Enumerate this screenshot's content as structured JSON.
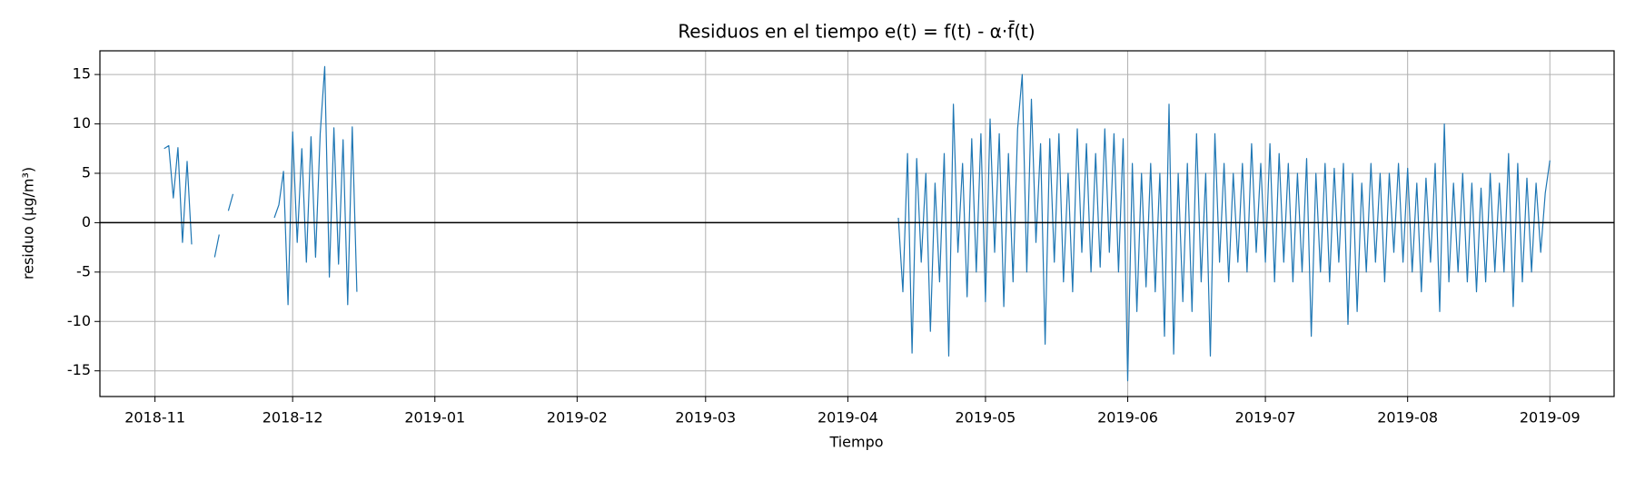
{
  "chart_data": {
    "type": "line",
    "title": "Residuos en el tiempo  e(t) = f(t) - α·f̄(t)",
    "x_label": "Tiempo",
    "y_label": "residuo (µg/m³)",
    "xlim": [
      "2018-10-20",
      "2019-09-15"
    ],
    "ylim": [
      -17.6,
      17.4
    ],
    "xticks": [
      {
        "value": "2018-11-01",
        "label": "2018-11"
      },
      {
        "value": "2018-12-01",
        "label": "2018-12"
      },
      {
        "value": "2019-01-01",
        "label": "2019-01"
      },
      {
        "value": "2019-02-01",
        "label": "2019-02"
      },
      {
        "value": "2019-03-01",
        "label": "2019-03"
      },
      {
        "value": "2019-04-01",
        "label": "2019-04"
      },
      {
        "value": "2019-05-01",
        "label": "2019-05"
      },
      {
        "value": "2019-06-01",
        "label": "2019-06"
      },
      {
        "value": "2019-07-01",
        "label": "2019-07"
      },
      {
        "value": "2019-08-01",
        "label": "2019-08"
      },
      {
        "value": "2019-09-01",
        "label": "2019-09"
      }
    ],
    "yticks": [
      -15,
      -10,
      -5,
      0,
      5,
      10,
      15
    ],
    "grid": true,
    "hline": 0,
    "x": [
      "2018-11-03",
      "2018-11-04",
      "2018-11-05",
      "2018-11-06",
      "2018-11-07",
      "2018-11-08",
      "2018-11-09",
      "2018-11-10",
      "2018-11-14",
      "2018-11-15",
      "2018-11-16",
      "2018-11-17",
      "2018-11-18",
      "2018-11-19",
      "2018-11-27",
      "2018-11-28",
      "2018-11-29",
      "2018-11-30",
      "2018-12-01",
      "2018-12-02",
      "2018-12-03",
      "2018-12-04",
      "2018-12-05",
      "2018-12-06",
      "2018-12-07",
      "2018-12-08",
      "2018-12-09",
      "2018-12-10",
      "2018-12-11",
      "2018-12-12",
      "2018-12-13",
      "2018-12-14",
      "2018-12-15",
      "2018-12-16",
      "2019-04-12",
      "2019-04-13",
      "2019-04-14",
      "2019-04-15",
      "2019-04-16",
      "2019-04-17",
      "2019-04-18",
      "2019-04-19",
      "2019-04-20",
      "2019-04-21",
      "2019-04-22",
      "2019-04-23",
      "2019-04-24",
      "2019-04-25",
      "2019-04-26",
      "2019-04-27",
      "2019-04-28",
      "2019-04-29",
      "2019-04-30",
      "2019-05-01",
      "2019-05-02",
      "2019-05-03",
      "2019-05-04",
      "2019-05-05",
      "2019-05-06",
      "2019-05-07",
      "2019-05-08",
      "2019-05-09",
      "2019-05-10",
      "2019-05-11",
      "2019-05-12",
      "2019-05-13",
      "2019-05-14",
      "2019-05-15",
      "2019-05-16",
      "2019-05-17",
      "2019-05-18",
      "2019-05-19",
      "2019-05-20",
      "2019-05-21",
      "2019-05-22",
      "2019-05-23",
      "2019-05-24",
      "2019-05-25",
      "2019-05-26",
      "2019-05-27",
      "2019-05-28",
      "2019-05-29",
      "2019-05-30",
      "2019-05-31",
      "2019-06-01",
      "2019-06-02",
      "2019-06-03",
      "2019-06-04",
      "2019-06-05",
      "2019-06-06",
      "2019-06-07",
      "2019-06-08",
      "2019-06-09",
      "2019-06-10",
      "2019-06-11",
      "2019-06-12",
      "2019-06-13",
      "2019-06-14",
      "2019-06-15",
      "2019-06-16",
      "2019-06-17",
      "2019-06-18",
      "2019-06-19",
      "2019-06-20",
      "2019-06-21",
      "2019-06-22",
      "2019-06-23",
      "2019-06-24",
      "2019-06-25",
      "2019-06-26",
      "2019-06-27",
      "2019-06-28",
      "2019-06-29",
      "2019-06-30",
      "2019-07-01",
      "2019-07-02",
      "2019-07-03",
      "2019-07-04",
      "2019-07-05",
      "2019-07-06",
      "2019-07-07",
      "2019-07-08",
      "2019-07-09",
      "2019-07-10",
      "2019-07-11",
      "2019-07-12",
      "2019-07-13",
      "2019-07-14",
      "2019-07-15",
      "2019-07-16",
      "2019-07-17",
      "2019-07-18",
      "2019-07-19",
      "2019-07-20",
      "2019-07-21",
      "2019-07-22",
      "2019-07-23",
      "2019-07-24",
      "2019-07-25",
      "2019-07-26",
      "2019-07-27",
      "2019-07-28",
      "2019-07-29",
      "2019-07-30",
      "2019-07-31",
      "2019-08-01",
      "2019-08-02",
      "2019-08-03",
      "2019-08-04",
      "2019-08-05",
      "2019-08-06",
      "2019-08-07",
      "2019-08-08",
      "2019-08-09",
      "2019-08-10",
      "2019-08-11",
      "2019-08-12",
      "2019-08-13",
      "2019-08-14",
      "2019-08-15",
      "2019-08-16",
      "2019-08-17",
      "2019-08-18",
      "2019-08-19",
      "2019-08-20",
      "2019-08-21",
      "2019-08-22",
      "2019-08-23",
      "2019-08-24",
      "2019-08-25",
      "2019-08-26",
      "2019-08-27",
      "2019-08-28",
      "2019-08-29",
      "2019-08-30",
      "2019-08-31",
      "2019-09-01"
    ],
    "series": [
      {
        "name": "residuo",
        "color": "#1f77b4",
        "values": [
          7.5,
          7.8,
          2.5,
          7.6,
          -2.0,
          6.2,
          -2.2,
          null,
          -3.5,
          -1.2,
          null,
          1.2,
          2.9,
          null,
          0.5,
          1.8,
          5.2,
          -8.3,
          9.2,
          -2.0,
          7.5,
          -4.0,
          8.7,
          -3.5,
          9.0,
          15.8,
          -5.5,
          9.6,
          -4.2,
          8.4,
          -8.3,
          9.7,
          -7.0,
          null,
          0.5,
          -7,
          7,
          -13.2,
          6.5,
          -4,
          5,
          -11,
          4,
          -6,
          7,
          -13.5,
          12,
          -3,
          6,
          -7.5,
          8.5,
          -5,
          9,
          -8,
          10.5,
          -3,
          9,
          -8.5,
          7,
          -6,
          9.5,
          15,
          -5,
          12.5,
          -2,
          8,
          -12.3,
          8.5,
          -4,
          9,
          -6,
          5,
          -7,
          9.5,
          -3,
          8,
          -5,
          7,
          -4.5,
          9.5,
          -3,
          9,
          -5,
          8.5,
          -16,
          6,
          -9,
          5,
          -6.5,
          6,
          -7,
          5,
          -11.5,
          12,
          -13.3,
          5,
          -8,
          6,
          -9,
          9,
          -6,
          5,
          -13.5,
          9,
          -4,
          6,
          -6,
          5,
          -4,
          6,
          -5,
          8,
          -3,
          6,
          -4,
          8,
          -6,
          7,
          -4,
          6,
          -6,
          5,
          -5,
          6.5,
          -11.5,
          5,
          -5,
          6,
          -6,
          5.5,
          -4,
          6,
          -10.3,
          5,
          -9,
          4,
          -5,
          6,
          -4,
          5,
          -6,
          5,
          -3,
          6,
          -4,
          5.5,
          -5,
          4,
          -7,
          4.5,
          -4,
          6,
          -9,
          10,
          -6,
          4,
          -5,
          5,
          -6,
          4,
          -7,
          3.5,
          -6,
          5,
          -5,
          4,
          -5,
          7,
          -8.5,
          6,
          -6,
          4.5,
          -5,
          4,
          -3,
          3,
          6.3
        ]
      }
    ]
  }
}
